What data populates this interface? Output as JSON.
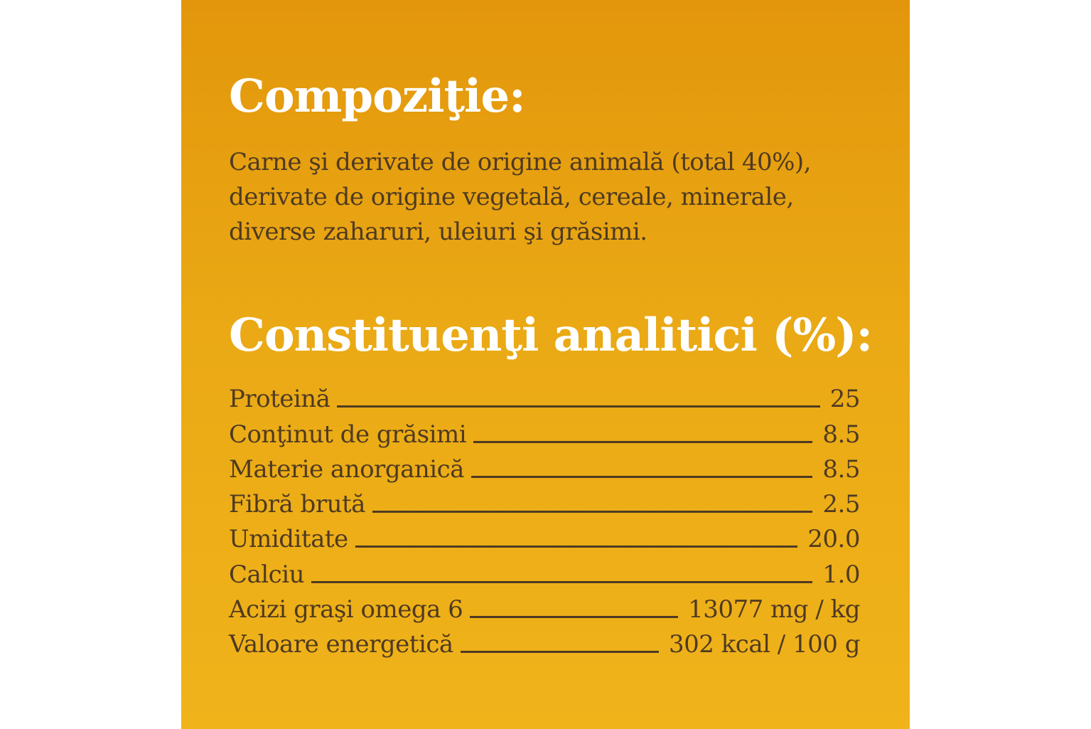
{
  "composition": {
    "title": "Compoziţie:",
    "text": "Carne şi derivate de origine animală (total 40%), derivate de origine vegetală, cereale, minerale, diverse zaharuri, uleiuri şi grăsimi."
  },
  "analytical": {
    "title": "Constituenţi analitici (%):",
    "rows": [
      {
        "label": "Proteină",
        "value": "25"
      },
      {
        "label": "Conţinut de grăsimi",
        "value": "8.5"
      },
      {
        "label": "Materie anorganică",
        "value": "8.5"
      },
      {
        "label": "Fibră brută",
        "value": "2.5"
      },
      {
        "label": "Umiditate",
        "value": "20.0"
      },
      {
        "label": "Calciu",
        "value": "1.0"
      },
      {
        "label": "Acizi graşi omega 6",
        "value": "13077 mg / kg"
      },
      {
        "label": "Valoare energetică",
        "value": "302 kcal / 100 g"
      }
    ]
  },
  "colors": {
    "panel_top": "#e3960b",
    "panel_bottom": "#f0b31a",
    "heading": "#ffffff",
    "body_text": "#4e3a22"
  }
}
